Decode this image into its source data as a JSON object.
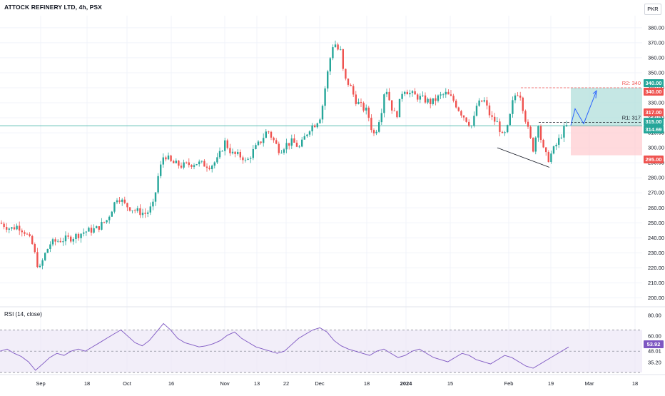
{
  "header": {
    "title": "ATTOCK REFINERY LTD, 4h, PSX",
    "currency": "PKR"
  },
  "colors": {
    "up": "#26a69a",
    "down": "#ef5350",
    "rsi_line": "#7e57c2",
    "rsi_band": "#ede7f6",
    "grid": "#f0f3fa",
    "target_zone": "#b2dfdb",
    "stop_zone": "#ffcdd2",
    "ref_line": "#26a69a",
    "projection": "#2962ff"
  },
  "chart_data": [
    {
      "type": "candlestick",
      "panel": "price",
      "x_labels": [
        "Sep",
        "18",
        "Oct",
        "16",
        "Nov",
        "13",
        "22",
        "Dec",
        "18",
        "2024",
        "15",
        "Feb",
        "19",
        "Mar",
        "18"
      ],
      "y_ticks": [
        "380.00",
        "370.00",
        "360.00",
        "350.00",
        "340.00",
        "330.00",
        "320.00",
        "310.00",
        "300.00",
        "290.00",
        "280.00",
        "270.00",
        "260.00",
        "250.00",
        "240.00",
        "230.00",
        "220.00",
        "210.00",
        "200.00"
      ],
      "ylim": [
        195,
        388
      ],
      "series_path": [
        [
          0,
          250
        ],
        [
          15,
          246
        ],
        [
          25,
          248
        ],
        [
          35,
          244
        ],
        [
          45,
          236
        ],
        [
          55,
          218
        ],
        [
          62,
          228
        ],
        [
          70,
          236
        ],
        [
          80,
          238
        ],
        [
          100,
          240
        ],
        [
          118,
          244
        ],
        [
          135,
          246
        ],
        [
          150,
          252
        ],
        [
          165,
          268
        ],
        [
          175,
          262
        ],
        [
          190,
          258
        ],
        [
          205,
          256
        ],
        [
          215,
          262
        ],
        [
          222,
          282
        ],
        [
          230,
          296
        ],
        [
          240,
          290
        ],
        [
          255,
          288
        ],
        [
          275,
          290
        ],
        [
          295,
          288
        ],
        [
          305,
          292
        ],
        [
          315,
          304
        ],
        [
          325,
          296
        ],
        [
          340,
          294
        ],
        [
          345,
          290
        ],
        [
          355,
          298
        ],
        [
          365,
          304
        ],
        [
          375,
          312
        ],
        [
          382,
          306
        ],
        [
          392,
          298
        ],
        [
          400,
          302
        ],
        [
          410,
          304
        ],
        [
          420,
          300
        ],
        [
          428,
          308
        ],
        [
          435,
          314
        ],
        [
          442,
          316
        ],
        [
          450,
          322
        ],
        [
          455,
          338
        ],
        [
          462,
          358
        ],
        [
          468,
          372
        ],
        [
          472,
          366
        ],
        [
          478,
          364
        ],
        [
          482,
          346
        ],
        [
          490,
          342
        ],
        [
          498,
          332
        ],
        [
          505,
          328
        ],
        [
          515,
          324
        ],
        [
          520,
          314
        ],
        [
          525,
          308
        ],
        [
          535,
          326
        ],
        [
          540,
          342
        ],
        [
          548,
          328
        ],
        [
          555,
          320
        ],
        [
          565,
          340
        ],
        [
          575,
          336
        ],
        [
          585,
          334
        ],
        [
          595,
          332
        ],
        [
          605,
          330
        ],
        [
          615,
          334
        ],
        [
          625,
          336
        ],
        [
          635,
          332
        ],
        [
          645,
          324
        ],
        [
          655,
          318
        ],
        [
          662,
          314
        ],
        [
          668,
          328
        ],
        [
          678,
          332
        ],
        [
          688,
          320
        ],
        [
          698,
          316
        ],
        [
          705,
          306
        ],
        [
          712,
          314
        ],
        [
          720,
          334
        ],
        [
          728,
          338
        ],
        [
          735,
          322
        ],
        [
          742,
          308
        ],
        [
          748,
          298
        ],
        [
          754,
          318
        ],
        [
          760,
          300
        ],
        [
          768,
          292
        ],
        [
          775,
          298
        ],
        [
          782,
          304
        ],
        [
          790,
          312
        ],
        [
          797,
          316
        ]
      ],
      "annotations": [
        {
          "label": "R2: 340",
          "value": 340
        },
        {
          "label": "R1: 317",
          "value": 317
        }
      ],
      "price_labels": [
        {
          "text": "340.00",
          "value": 340,
          "color": "#26a69a"
        },
        {
          "text": "340.00",
          "value": 340,
          "color": "#ef5350"
        },
        {
          "text": "317.00",
          "value": 317,
          "color": "#ef5350"
        },
        {
          "text": "315.00",
          "value": 315,
          "color": "#26a69a"
        },
        {
          "text": "314.69",
          "value": 314.69,
          "color": "#26a69a"
        },
        {
          "text": "295.00",
          "value": 295,
          "color": "#ef5350"
        }
      ],
      "reference_line": 314.69,
      "position": {
        "entry": 315,
        "target": 340,
        "stop": 295
      }
    },
    {
      "type": "line",
      "panel": "rsi",
      "ylim": [
        30,
        85
      ],
      "y_ticks": [
        "80.00",
        "60.00",
        "48.01",
        "35.20"
      ],
      "bands": {
        "upper": 70,
        "middle": 50,
        "lower": 30
      },
      "last_value": "53.92",
      "values": [
        50,
        52,
        48,
        45,
        40,
        32,
        38,
        44,
        48,
        46,
        50,
        52,
        50,
        54,
        58,
        62,
        66,
        70,
        64,
        58,
        55,
        60,
        68,
        76,
        70,
        62,
        58,
        56,
        54,
        55,
        57,
        60,
        65,
        68,
        62,
        58,
        54,
        52,
        50,
        48,
        50,
        56,
        62,
        66,
        70,
        72,
        68,
        60,
        55,
        52,
        50,
        48,
        46,
        50,
        52,
        48,
        44,
        46,
        50,
        52,
        48,
        44,
        42,
        40,
        44,
        48,
        46,
        42,
        40,
        38,
        42,
        46,
        44,
        40,
        36,
        34,
        38,
        42,
        46,
        50,
        53.92
      ]
    }
  ]
}
